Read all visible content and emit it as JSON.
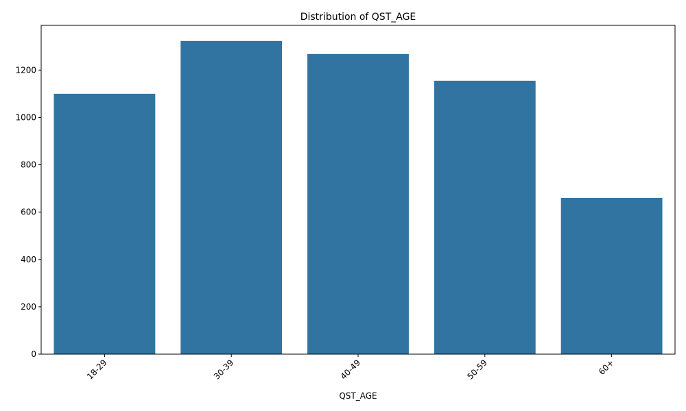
{
  "chart_data": {
    "type": "bar",
    "title": "Distribution of QST_AGE",
    "xlabel": "QST_AGE",
    "ylabel": "",
    "categories": [
      "18-29",
      "30-39",
      "40-49",
      "50-59",
      "60+"
    ],
    "values": [
      1100,
      1323,
      1268,
      1155,
      660
    ],
    "ylim": [
      0,
      1389
    ],
    "yticks": [
      0,
      200,
      400,
      600,
      800,
      1000,
      1200
    ],
    "grid": false,
    "legend": "none",
    "bar_color": "#3274a1"
  }
}
